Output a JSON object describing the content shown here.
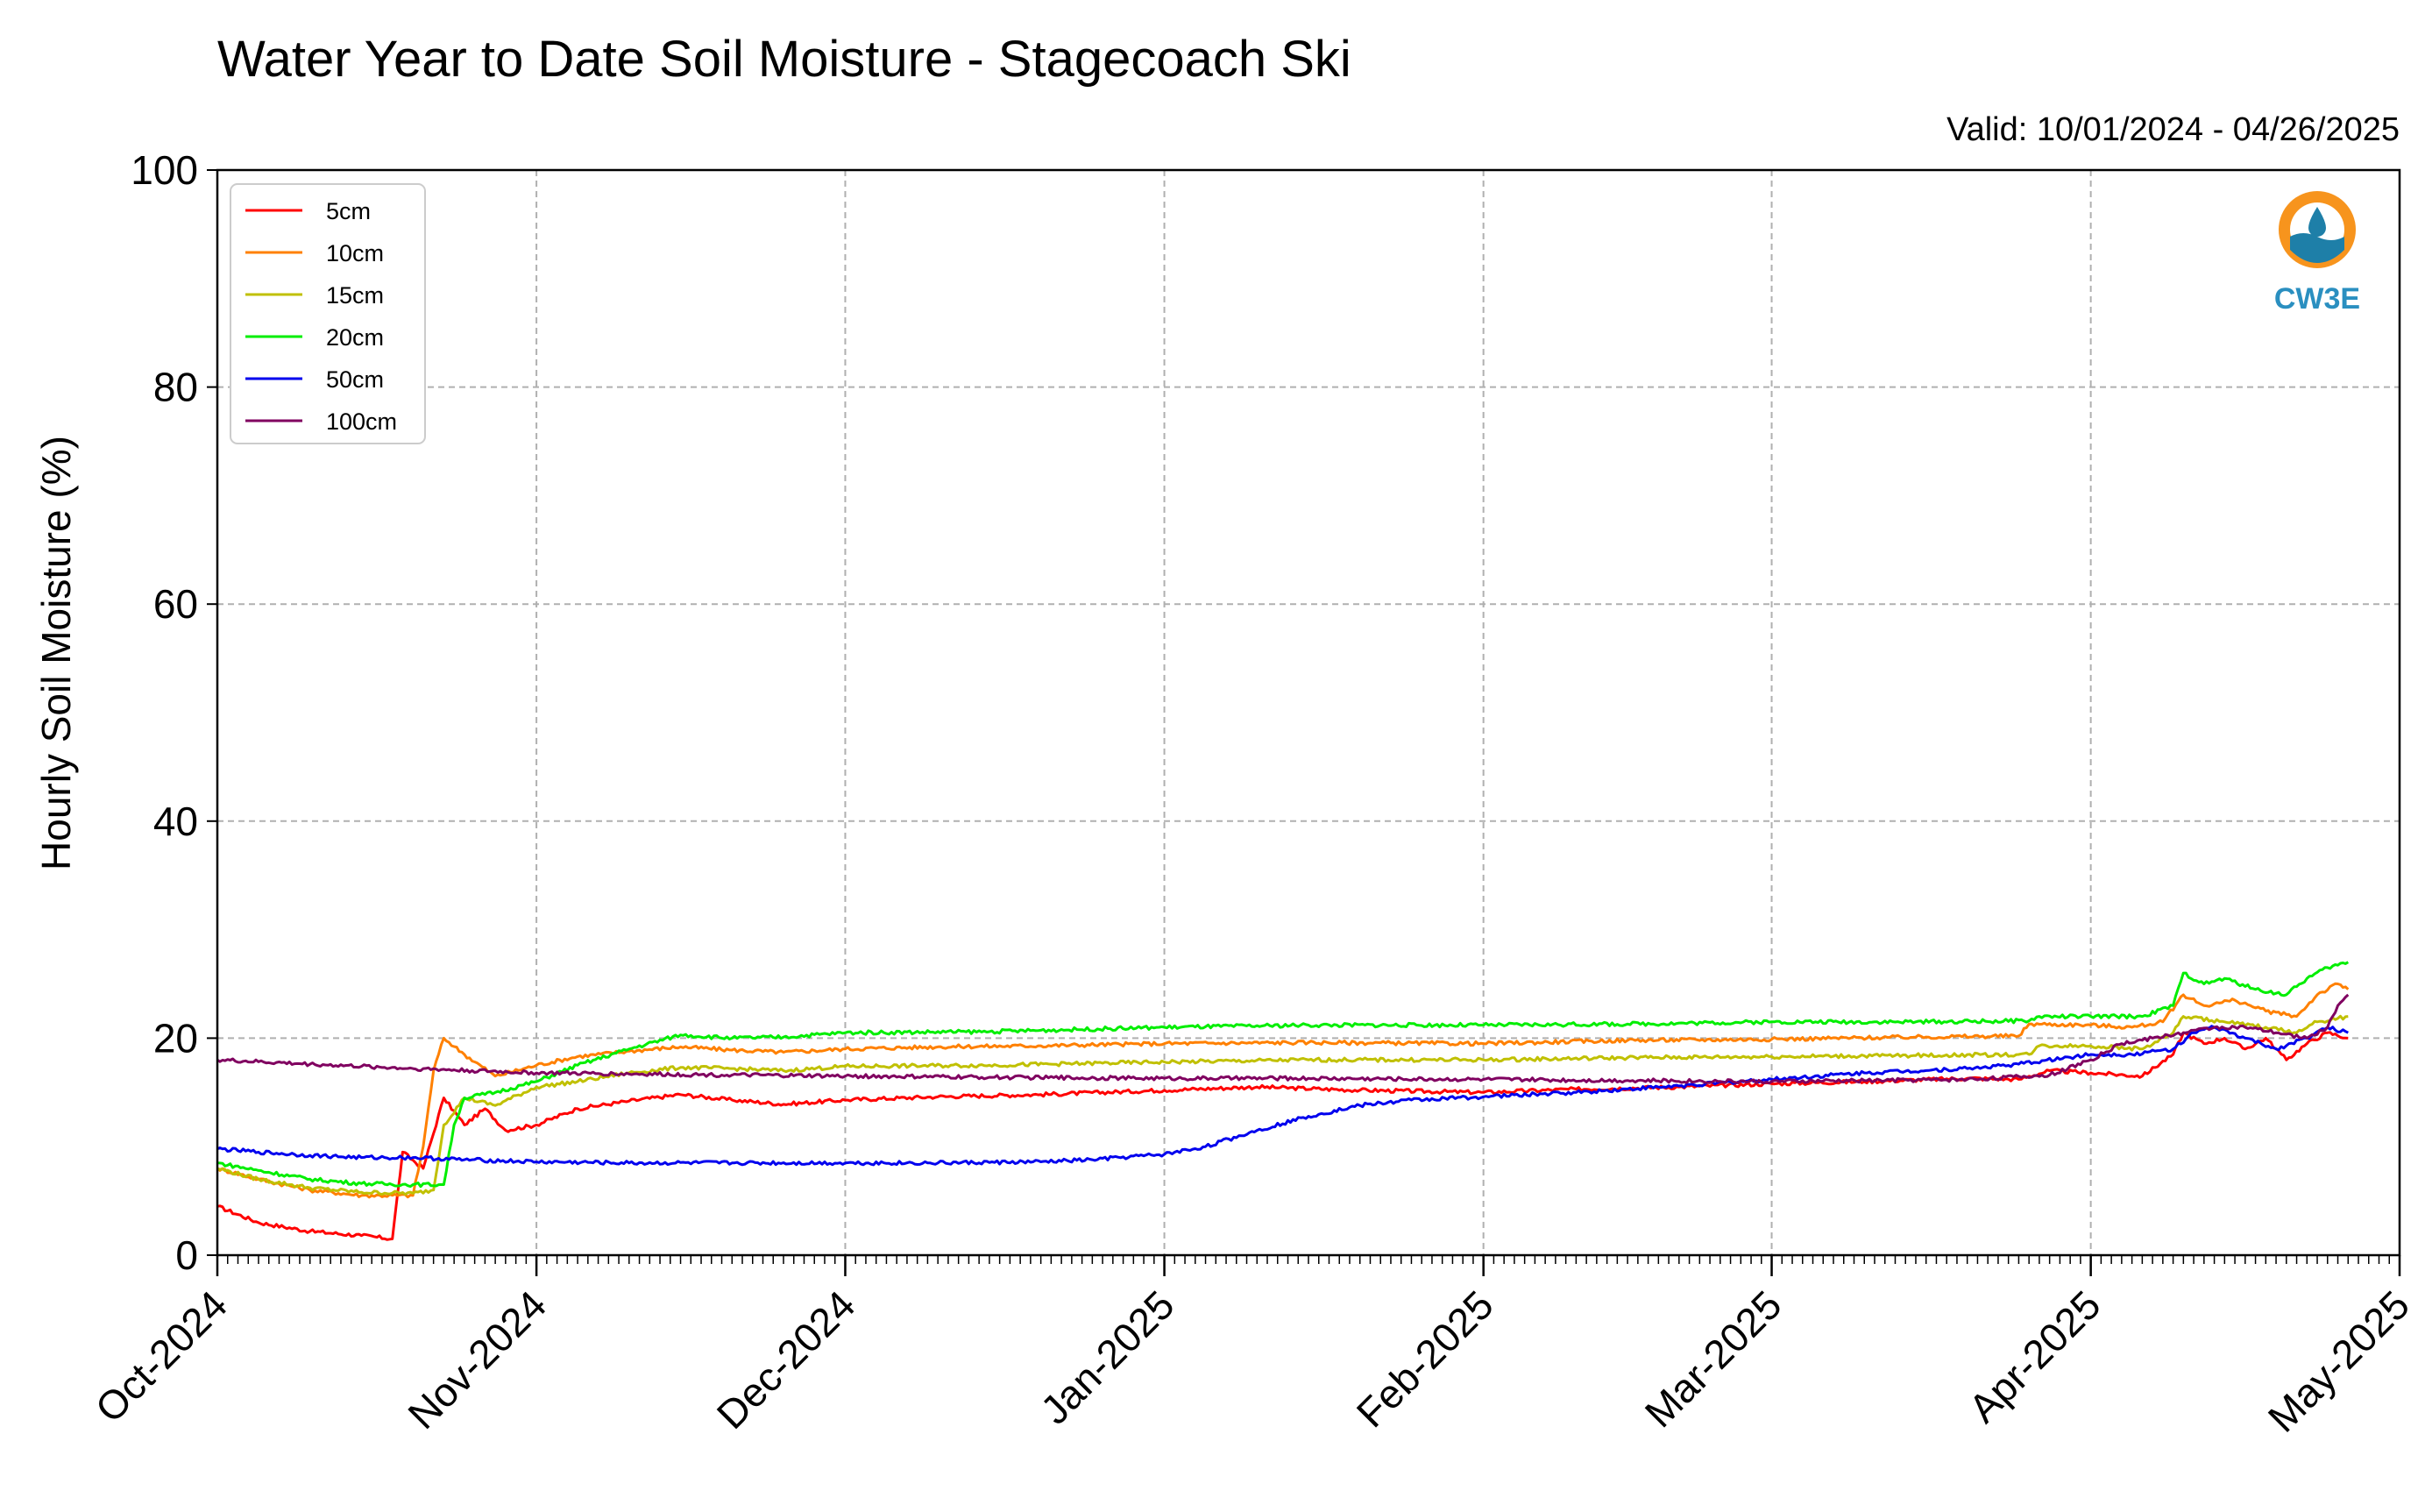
{
  "chart_data": {
    "type": "line",
    "title": "Water Year to Date Soil Moisture - Stagecoach Ski",
    "subtitle": "Valid: 10/01/2024 - 04/26/2025",
    "ylabel": "Hourly Soil Moisture (%)",
    "xlabel": "",
    "ylim": [
      0,
      100
    ],
    "yticks": [
      "0",
      "20",
      "40",
      "60",
      "80",
      "100"
    ],
    "xlim": [
      "2024-10-01",
      "2025-05-01"
    ],
    "xticks": [
      {
        "date": "2024-10-01",
        "label": "Oct-2024"
      },
      {
        "date": "2024-11-01",
        "label": "Nov-2024"
      },
      {
        "date": "2024-12-01",
        "label": "Dec-2024"
      },
      {
        "date": "2025-01-01",
        "label": "Jan-2025"
      },
      {
        "date": "2025-02-01",
        "label": "Feb-2025"
      },
      {
        "date": "2025-03-01",
        "label": "Mar-2025"
      },
      {
        "date": "2025-04-01",
        "label": "Apr-2025"
      },
      {
        "date": "2025-05-01",
        "label": "May-2025"
      }
    ],
    "grid": true,
    "legend_position": "top-left",
    "series": [
      {
        "name": "5cm",
        "color": "#ff0000",
        "points": [
          [
            "2024-10-01",
            4.5
          ],
          [
            "2024-10-05",
            3.0
          ],
          [
            "2024-10-10",
            2.2
          ],
          [
            "2024-10-15",
            1.8
          ],
          [
            "2024-10-18",
            1.5
          ],
          [
            "2024-10-19",
            9.5
          ],
          [
            "2024-10-21",
            8.0
          ],
          [
            "2024-10-23",
            14.5
          ],
          [
            "2024-10-25",
            12.0
          ],
          [
            "2024-10-27",
            13.5
          ],
          [
            "2024-10-29",
            11.5
          ],
          [
            "2024-11-01",
            12.0
          ],
          [
            "2024-11-05",
            13.5
          ],
          [
            "2024-11-10",
            14.2
          ],
          [
            "2024-11-15",
            14.8
          ],
          [
            "2024-11-20",
            14.3
          ],
          [
            "2024-11-25",
            13.9
          ],
          [
            "2024-12-01",
            14.3
          ],
          [
            "2024-12-10",
            14.6
          ],
          [
            "2024-12-20",
            14.8
          ],
          [
            "2025-01-01",
            15.2
          ],
          [
            "2025-01-10",
            15.5
          ],
          [
            "2025-01-20",
            15.2
          ],
          [
            "2025-02-01",
            15.0
          ],
          [
            "2025-02-10",
            15.3
          ],
          [
            "2025-02-20",
            15.5
          ],
          [
            "2025-03-01",
            15.8
          ],
          [
            "2025-03-10",
            16.0
          ],
          [
            "2025-03-20",
            16.3
          ],
          [
            "2025-03-25",
            16.2
          ],
          [
            "2025-03-28",
            17.0
          ],
          [
            "2025-04-01",
            16.8
          ],
          [
            "2025-04-06",
            16.5
          ],
          [
            "2025-04-09",
            18.5
          ],
          [
            "2025-04-10",
            20.5
          ],
          [
            "2025-04-12",
            19.5
          ],
          [
            "2025-04-14",
            20.0
          ],
          [
            "2025-04-16",
            19.0
          ],
          [
            "2025-04-18",
            20.0
          ],
          [
            "2025-04-20",
            18.0
          ],
          [
            "2025-04-22",
            19.5
          ],
          [
            "2025-04-24",
            20.5
          ],
          [
            "2025-04-26",
            20.0
          ]
        ]
      },
      {
        "name": "10cm",
        "color": "#ff8000",
        "points": [
          [
            "2024-10-01",
            8.0
          ],
          [
            "2024-10-05",
            7.0
          ],
          [
            "2024-10-10",
            6.0
          ],
          [
            "2024-10-15",
            5.5
          ],
          [
            "2024-10-20",
            5.5
          ],
          [
            "2024-10-21",
            10.0
          ],
          [
            "2024-10-22",
            17.0
          ],
          [
            "2024-10-23",
            20.0
          ],
          [
            "2024-10-25",
            18.5
          ],
          [
            "2024-10-28",
            16.5
          ],
          [
            "2024-11-01",
            17.5
          ],
          [
            "2024-11-05",
            18.3
          ],
          [
            "2024-11-10",
            18.8
          ],
          [
            "2024-11-15",
            19.2
          ],
          [
            "2024-11-20",
            18.9
          ],
          [
            "2024-11-25",
            18.7
          ],
          [
            "2024-12-01",
            19.0
          ],
          [
            "2024-12-10",
            19.2
          ],
          [
            "2024-12-20",
            19.3
          ],
          [
            "2025-01-01",
            19.5
          ],
          [
            "2025-01-15",
            19.6
          ],
          [
            "2025-02-01",
            19.5
          ],
          [
            "2025-02-15",
            19.8
          ],
          [
            "2025-03-01",
            19.9
          ],
          [
            "2025-03-15",
            20.1
          ],
          [
            "2025-03-25",
            20.2
          ],
          [
            "2025-03-26",
            21.3
          ],
          [
            "2025-04-01",
            21.2
          ],
          [
            "2025-04-05",
            21.0
          ],
          [
            "2025-04-08",
            21.5
          ],
          [
            "2025-04-10",
            24.0
          ],
          [
            "2025-04-12",
            23.0
          ],
          [
            "2025-04-15",
            23.5
          ],
          [
            "2025-04-18",
            22.5
          ],
          [
            "2025-04-21",
            22.0
          ],
          [
            "2025-04-23",
            24.0
          ],
          [
            "2025-04-25",
            25.0
          ],
          [
            "2025-04-26",
            24.5
          ]
        ]
      },
      {
        "name": "15cm",
        "color": "#c0c000",
        "points": [
          [
            "2024-10-01",
            8.0
          ],
          [
            "2024-10-05",
            7.0
          ],
          [
            "2024-10-10",
            6.2
          ],
          [
            "2024-10-15",
            5.8
          ],
          [
            "2024-10-20",
            5.7
          ],
          [
            "2024-10-22",
            6.0
          ],
          [
            "2024-10-23",
            12.0
          ],
          [
            "2024-10-25",
            14.5
          ],
          [
            "2024-10-28",
            13.8
          ],
          [
            "2024-11-01",
            15.5
          ],
          [
            "2024-11-05",
            16.0
          ],
          [
            "2024-11-10",
            16.8
          ],
          [
            "2024-11-15",
            17.3
          ],
          [
            "2024-11-20",
            17.2
          ],
          [
            "2024-11-25",
            17.0
          ],
          [
            "2024-12-01",
            17.4
          ],
          [
            "2024-12-15",
            17.5
          ],
          [
            "2025-01-01",
            17.8
          ],
          [
            "2025-01-15",
            18.0
          ],
          [
            "2025-02-01",
            18.0
          ],
          [
            "2025-02-15",
            18.2
          ],
          [
            "2025-03-01",
            18.3
          ],
          [
            "2025-03-15",
            18.4
          ],
          [
            "2025-03-26",
            18.5
          ],
          [
            "2025-03-27",
            19.3
          ],
          [
            "2025-04-01",
            19.3
          ],
          [
            "2025-04-06",
            19.0
          ],
          [
            "2025-04-09",
            20.5
          ],
          [
            "2025-04-10",
            22.0
          ],
          [
            "2025-04-14",
            21.5
          ],
          [
            "2025-04-18",
            21.0
          ],
          [
            "2025-04-21",
            20.5
          ],
          [
            "2025-04-23",
            21.5
          ],
          [
            "2025-04-26",
            22.0
          ]
        ]
      },
      {
        "name": "20cm",
        "color": "#00ee00",
        "points": [
          [
            "2024-10-01",
            8.5
          ],
          [
            "2024-10-05",
            7.8
          ],
          [
            "2024-10-10",
            7.0
          ],
          [
            "2024-10-15",
            6.6
          ],
          [
            "2024-10-20",
            6.5
          ],
          [
            "2024-10-23",
            6.5
          ],
          [
            "2024-10-24",
            12.0
          ],
          [
            "2024-10-25",
            14.5
          ],
          [
            "2024-10-28",
            15.0
          ],
          [
            "2024-11-01",
            16.0
          ],
          [
            "2024-11-05",
            17.5
          ],
          [
            "2024-11-10",
            19.0
          ],
          [
            "2024-11-15",
            20.3
          ],
          [
            "2024-11-20",
            20.0
          ],
          [
            "2024-11-25",
            20.1
          ],
          [
            "2024-12-01",
            20.5
          ],
          [
            "2024-12-15",
            20.6
          ],
          [
            "2025-01-01",
            21.0
          ],
          [
            "2025-01-15",
            21.2
          ],
          [
            "2025-02-01",
            21.2
          ],
          [
            "2025-02-15",
            21.3
          ],
          [
            "2025-03-01",
            21.5
          ],
          [
            "2025-03-15",
            21.5
          ],
          [
            "2025-03-26",
            21.6
          ],
          [
            "2025-03-27",
            22.0
          ],
          [
            "2025-04-01",
            22.0
          ],
          [
            "2025-04-06",
            22.0
          ],
          [
            "2025-04-09",
            23.0
          ],
          [
            "2025-04-10",
            26.0
          ],
          [
            "2025-04-12",
            25.0
          ],
          [
            "2025-04-14",
            25.5
          ],
          [
            "2025-04-17",
            24.5
          ],
          [
            "2025-04-20",
            24.0
          ],
          [
            "2025-04-22",
            25.5
          ],
          [
            "2025-04-24",
            26.5
          ],
          [
            "2025-04-26",
            27.0
          ]
        ]
      },
      {
        "name": "50cm",
        "color": "#0000ee",
        "points": [
          [
            "2024-10-01",
            9.8
          ],
          [
            "2024-10-05",
            9.5
          ],
          [
            "2024-10-10",
            9.2
          ],
          [
            "2024-10-15",
            9.0
          ],
          [
            "2024-10-20",
            9.0
          ],
          [
            "2024-10-25",
            8.8
          ],
          [
            "2024-11-01",
            8.6
          ],
          [
            "2024-11-10",
            8.5
          ],
          [
            "2024-11-20",
            8.5
          ],
          [
            "2024-12-01",
            8.5
          ],
          [
            "2024-12-10",
            8.5
          ],
          [
            "2024-12-20",
            8.6
          ],
          [
            "2024-12-25",
            8.8
          ],
          [
            "2025-01-01",
            9.3
          ],
          [
            "2025-01-05",
            10.0
          ],
          [
            "2025-01-10",
            11.5
          ],
          [
            "2025-01-15",
            12.8
          ],
          [
            "2025-01-20",
            13.8
          ],
          [
            "2025-01-25",
            14.3
          ],
          [
            "2025-02-01",
            14.6
          ],
          [
            "2025-02-10",
            15.0
          ],
          [
            "2025-02-20",
            15.6
          ],
          [
            "2025-03-01",
            16.2
          ],
          [
            "2025-03-10",
            16.8
          ],
          [
            "2025-03-20",
            17.2
          ],
          [
            "2025-03-25",
            17.6
          ],
          [
            "2025-04-01",
            18.5
          ],
          [
            "2025-04-05",
            18.5
          ],
          [
            "2025-04-09",
            19.0
          ],
          [
            "2025-04-11",
            20.5
          ],
          [
            "2025-04-13",
            21.0
          ],
          [
            "2025-04-16",
            20.0
          ],
          [
            "2025-04-19",
            19.0
          ],
          [
            "2025-04-22",
            20.0
          ],
          [
            "2025-04-24",
            21.0
          ],
          [
            "2025-04-26",
            20.5
          ]
        ]
      },
      {
        "name": "100cm",
        "color": "#800060",
        "points": [
          [
            "2024-10-01",
            18.0
          ],
          [
            "2024-10-10",
            17.6
          ],
          [
            "2024-10-20",
            17.2
          ],
          [
            "2024-11-01",
            16.8
          ],
          [
            "2024-11-10",
            16.7
          ],
          [
            "2024-11-20",
            16.6
          ],
          [
            "2024-12-01",
            16.5
          ],
          [
            "2024-12-15",
            16.4
          ],
          [
            "2025-01-01",
            16.3
          ],
          [
            "2025-01-15",
            16.3
          ],
          [
            "2025-02-01",
            16.2
          ],
          [
            "2025-02-15",
            16.1
          ],
          [
            "2025-03-01",
            16.0
          ],
          [
            "2025-03-10",
            16.1
          ],
          [
            "2025-03-20",
            16.2
          ],
          [
            "2025-03-28",
            16.6
          ],
          [
            "2025-04-01",
            18.0
          ],
          [
            "2025-04-04",
            19.5
          ],
          [
            "2025-04-07",
            20.0
          ],
          [
            "2025-04-10",
            20.5
          ],
          [
            "2025-04-13",
            21.0
          ],
          [
            "2025-04-16",
            21.0
          ],
          [
            "2025-04-19",
            20.5
          ],
          [
            "2025-04-22",
            20.0
          ],
          [
            "2025-04-24",
            21.0
          ],
          [
            "2025-04-25",
            23.0
          ],
          [
            "2025-04-26",
            24.0
          ]
        ]
      }
    ]
  },
  "logo": {
    "text": "CW3E",
    "ring_color": "#f7941d",
    "wave_color": "#1e7fa8"
  }
}
